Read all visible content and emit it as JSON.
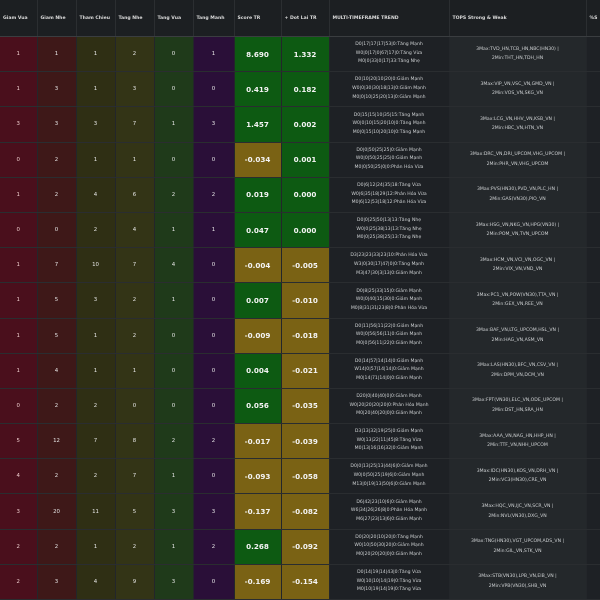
{
  "columns": [
    "Giam Vua",
    "Giam Nhe",
    "Tham Chieu",
    "Tang Nhe",
    "Tang Vua",
    "Tang Manh",
    "Score TR",
    "+ Dot Lai TR",
    "MULTI-TIMEFRAME TREND",
    "TOPS Strong & Weak",
    "%S"
  ],
  "rows": [
    {
      "giam_vua": "1",
      "giam_nhe": "1",
      "tham_chieu": "1",
      "tang_nhe": "2",
      "tang_vua": "0",
      "tang_manh": "1",
      "score": "8.690",
      "dot": "1.332",
      "score_pos": true,
      "dot_pos": true,
      "trend": [
        "D0|17|17|17|53|0:Tăng Mạnh",
        "W0|0|17|0|67|17|0:Tăng Vừa",
        "M0|0|33|0|17|33:Tăng Nhẹ"
      ],
      "tops": [
        "3Max:TVD_HN,TCB_HN,NBC(HN30) |",
        "2Min:THT_HN,TDH_HN"
      ]
    },
    {
      "giam_vua": "1",
      "giam_nhe": "3",
      "tham_chieu": "1",
      "tang_nhe": "3",
      "tang_vua": "0",
      "tang_manh": "0",
      "score": "0.419",
      "dot": "0.182",
      "score_pos": true,
      "dot_pos": true,
      "trend": [
        "D0|10|20|10|20|0:Giảm Mạnh",
        "W0|0|30|30|18|13|0:Giảm Mạnh",
        "M0|0|10|25|20|13|0:Giảm Mạnh"
      ],
      "tops": [
        "3Max:VIP_VN,VSC_VN,GMD_VN |",
        "2Min:VOS_VN,SKG_VN"
      ]
    },
    {
      "giam_vua": "3",
      "giam_nhe": "3",
      "tham_chieu": "3",
      "tang_nhe": "7",
      "tang_vua": "1",
      "tang_manh": "3",
      "score": "1.457",
      "dot": "0.002",
      "score_pos": true,
      "dot_pos": true,
      "trend": [
        "D0|15|15|10|35|15:Tăng Mạnh",
        "W0|0|10|15|20|10|0:Tăng Mạnh",
        "M0|0|15|10|20|10|0:Tăng Mạnh"
      ],
      "tops": [
        "3Max:LCG_VN,HHV_VN,KSB_VN |",
        "2Min:HBC_VN,HTN_VN"
      ]
    },
    {
      "giam_vua": "0",
      "giam_nhe": "2",
      "tham_chieu": "1",
      "tang_nhe": "1",
      "tang_vua": "0",
      "tang_manh": "0",
      "score": "-0.034",
      "dot": "0.001",
      "score_pos": false,
      "dot_pos": true,
      "trend": [
        "D0|0|50|25|25|0:Giảm Mạnh",
        "W0|0|50|25|25|0:Giảm Mạnh",
        "M0|0|50|25|0|0:Phân Hóa Vừa"
      ],
      "tops": [
        "3Max:DRC_VN,DRI_UPCOM,VHG_UPCOM |",
        "2Min:PHR_VN,VHG_UPCOM"
      ]
    },
    {
      "giam_vua": "1",
      "giam_nhe": "2",
      "tham_chieu": "4",
      "tang_nhe": "6",
      "tang_vua": "2",
      "tang_manh": "2",
      "score": "0.019",
      "dot": "0.000",
      "score_pos": true,
      "dot_pos": true,
      "trend": [
        "D0|6|12|24|35|18:Tăng Vừa",
        "W0|6|35|18|29|12:Phân Hóa Vừa",
        "M0|6|12|53|18|12:Phân Hóa Vừa"
      ],
      "tops": [
        "3Max:PVS(HN30),PVD_VN,PLC_HN |",
        "2Min:GAS(VN30),PIO_VN"
      ]
    },
    {
      "giam_vua": "0",
      "giam_nhe": "0",
      "tham_chieu": "2",
      "tang_nhe": "4",
      "tang_vua": "1",
      "tang_manh": "1",
      "score": "0.047",
      "dot": "0.000",
      "score_pos": true,
      "dot_pos": true,
      "trend": [
        "D0|0|25|50|13|13:Tăng Nhẹ",
        "W0|0|25|38|13|13:Tăng Nhẹ",
        "M0|0|25|38|25|13:Tăng Nhẹ"
      ],
      "tops": [
        "3Max:HSG_VN,NKG_VN,HPG(VN30) |",
        "2Min:POM_VN,TVN_UPCOM"
      ]
    },
    {
      "giam_vua": "1",
      "giam_nhe": "7",
      "tham_chieu": "10",
      "tang_nhe": "7",
      "tang_vua": "4",
      "tang_manh": "0",
      "score": "-0.004",
      "dot": "-0.005",
      "score_pos": false,
      "dot_pos": false,
      "trend": [
        "D3|23|23|33|23|10:Phân Hóa Vừa",
        "W3|0|30|17|47|0|0:Tăng Mạnh",
        "M3|47|30|3|13|0:Giảm Mạnh"
      ],
      "tops": [
        "3Max:HCM_VN,VCI_VN,OGC_VN |",
        "2Min:VIX_VN,VND_VN"
      ]
    },
    {
      "giam_vua": "1",
      "giam_nhe": "5",
      "tham_chieu": "3",
      "tang_nhe": "2",
      "tang_vua": "1",
      "tang_manh": "0",
      "score": "0.007",
      "dot": "-0.010",
      "score_pos": true,
      "dot_pos": false,
      "trend": [
        "D0|8|25|33|15|0:Giảm Mạnh",
        "W0|0|40|15|30|0:Giảm Mạnh",
        "M0|8|31|31|23|8|0:Phân Hóa Vừa"
      ],
      "tops": [
        "3Max:PC1_VN,POW(VN30),TTA_VN |",
        "2Min:GEX_VN,REE_VN"
      ]
    },
    {
      "giam_vua": "1",
      "giam_nhe": "5",
      "tham_chieu": "1",
      "tang_nhe": "2",
      "tang_vua": "0",
      "tang_manh": "0",
      "score": "-0.009",
      "dot": "-0.018",
      "score_pos": false,
      "dot_pos": false,
      "trend": [
        "D0|11|56|11|22|0:Giảm Mạnh",
        "W0|0|56|56|11|0:Giảm Mạnh",
        "M0|0|56|11|22|0:Giảm Mạnh"
      ],
      "tops": [
        "3Max:BAF_VN,LTG_UPCOM,HSL_VN |",
        "2Min:HAG_VN,ASM_VN"
      ]
    },
    {
      "giam_vua": "1",
      "giam_nhe": "4",
      "tham_chieu": "1",
      "tang_nhe": "1",
      "tang_vua": "0",
      "tang_manh": "0",
      "score": "0.004",
      "dot": "-0.021",
      "score_pos": true,
      "dot_pos": false,
      "trend": [
        "D0|14|57|14|14|0:Giảm Mạnh",
        "W14|0|57|14|14|0:Giảm Mạnh",
        "M0|14|71|14|0|0:Giảm Mạnh"
      ],
      "tops": [
        "3Max:LAS(HN30),BFC_VN,CSV_VN |",
        "2Min:DPM_VN,DCM_VN"
      ]
    },
    {
      "giam_vua": "0",
      "giam_nhe": "2",
      "tham_chieu": "2",
      "tang_nhe": "0",
      "tang_vua": "0",
      "tang_manh": "0",
      "score": "0.056",
      "dot": "-0.035",
      "score_pos": true,
      "dot_pos": false,
      "trend": [
        "D20|0|40|40|0|0:Giảm Mạnh",
        "W0|20|20|20|20|0:Phân Hóa Mạnh",
        "M0|20|40|20|0|0:Giảm Mạnh"
      ],
      "tops": [
        "3Max:FPT(VN30),ELC_VN,ODE_UPCOM |",
        "2Min:DST_HN,SRA_HN"
      ]
    },
    {
      "giam_vua": "5",
      "giam_nhe": "12",
      "tham_chieu": "7",
      "tang_nhe": "8",
      "tang_vua": "2",
      "tang_manh": "2",
      "score": "-0.017",
      "dot": "-0.039",
      "score_pos": false,
      "dot_pos": false,
      "trend": [
        "D3|13|32|19|25|0:Giảm Mạnh",
        "W0|13|22|11|45|8:Tăng Vừa",
        "M0|13|16|16|32|0:Giảm Mạnh"
      ],
      "tops": [
        "3Max:AAA_VN,NAG_HN,HHP_HN |",
        "2Min:TTF_VN,NHH_UPCOM"
      ]
    },
    {
      "giam_vua": "4",
      "giam_nhe": "2",
      "tham_chieu": "2",
      "tang_nhe": "7",
      "tang_vua": "1",
      "tang_manh": "0",
      "score": "-0.093",
      "dot": "-0.058",
      "score_pos": false,
      "dot_pos": false,
      "trend": [
        "D0|0|13|25|13|44|6|0:Giảm Mạnh",
        "W0|0|50|25|19|6|0:Giảm Mạnh",
        "M13|0|19|13|50|6|0:Giảm Mạnh"
      ],
      "tops": [
        "3Max:IDC(HN30),KOS_VN,DRH_VN |",
        "2Min:VC3(HN30),CRE_VN"
      ]
    },
    {
      "giam_vua": "3",
      "giam_nhe": "20",
      "tham_chieu": "11",
      "tang_nhe": "5",
      "tang_vua": "3",
      "tang_manh": "3",
      "score": "-0.137",
      "dot": "-0.082",
      "score_pos": false,
      "dot_pos": false,
      "trend": [
        "D6|42|23|10|6|0:Giảm Mạnh",
        "W6|34|26|26|8|0:Phân Hóa Mạnh",
        "M6|27|23|13|6|0:Giảm Mạnh"
      ],
      "tops": [
        "3Max:HQC_VN,IJC_VN,SCR_VN |",
        "2Min:NVL(VN30),DXG_VN"
      ]
    },
    {
      "giam_vua": "2",
      "giam_nhe": "2",
      "tham_chieu": "1",
      "tang_nhe": "2",
      "tang_vua": "1",
      "tang_manh": "2",
      "score": "0.268",
      "dot": "-0.092",
      "score_pos": true,
      "dot_pos": false,
      "trend": [
        "D0|20|20|10|20|0:Tăng Mạnh",
        "W0|10|50|30|20|0:Giảm Mạnh",
        "M0|20|20|20|0|0:Giảm Mạnh"
      ],
      "tops": [
        "3Max:TNG(HN30),VGT_UPCOM,ADS_VN |",
        "2Min:GIL_VN,STK_VN"
      ]
    },
    {
      "giam_vua": "2",
      "giam_nhe": "3",
      "tham_chieu": "4",
      "tang_nhe": "9",
      "tang_vua": "3",
      "tang_manh": "0",
      "score": "-0.169",
      "dot": "-0.154",
      "score_pos": false,
      "dot_pos": false,
      "trend": [
        "D0|14|19|14|43|0:Tăng Vừa",
        "W0|10|10|14|19|0:Tăng Vừa",
        "M0|10|19|14|19|0:Tăng Vừa"
      ],
      "tops": [
        "3Max:STB(VN30),LPB_VN,EIB_VN |",
        "2Min:VPB(VN30),SHB_VN"
      ]
    }
  ]
}
